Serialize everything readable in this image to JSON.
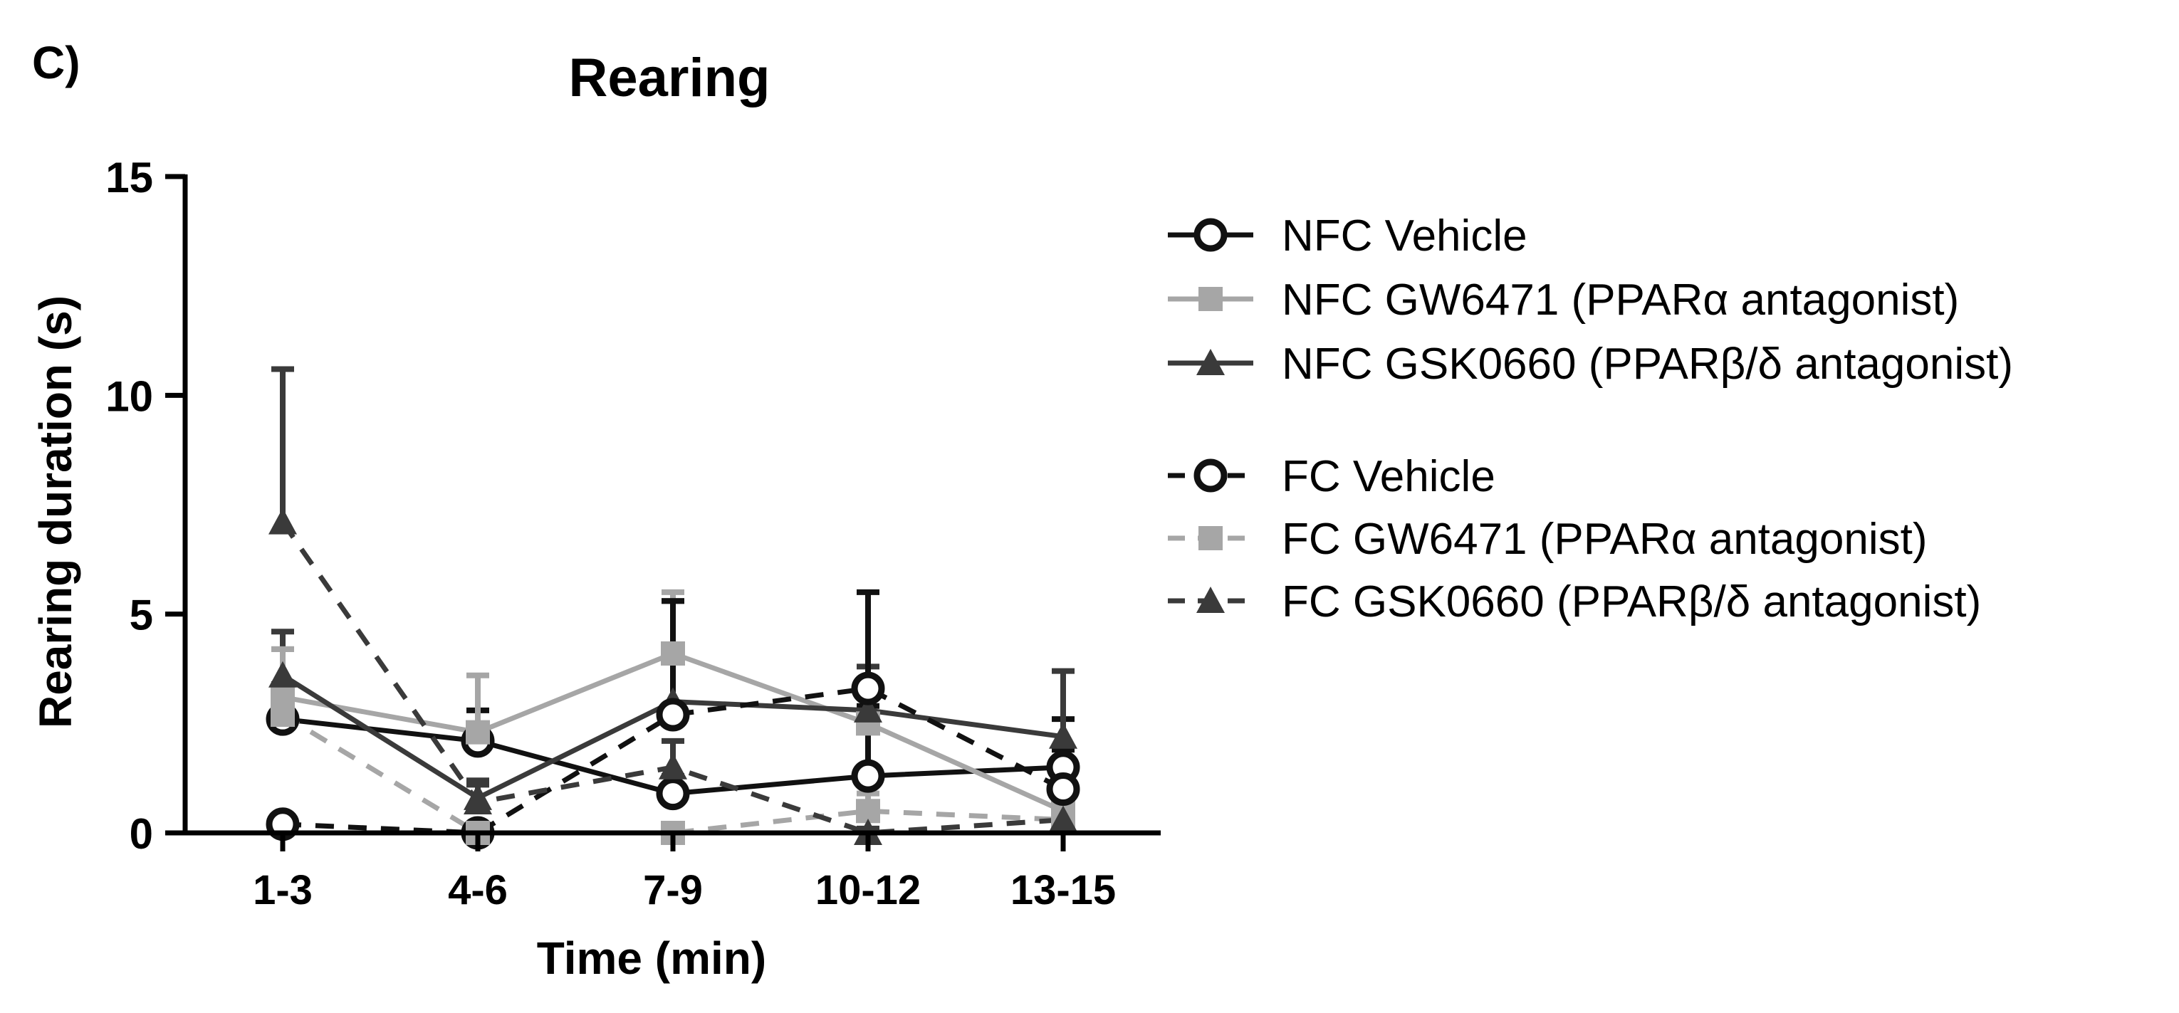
{
  "panel_label": "C)",
  "chart_data": {
    "type": "line",
    "title": "Rearing",
    "xlabel": "Time (min)",
    "ylabel": "Rearing duration (s)",
    "categories": [
      "1-3",
      "4-6",
      "7-9",
      "10-12",
      "13-15"
    ],
    "ylim": [
      0,
      15
    ],
    "yticks": [
      0,
      5,
      10,
      15
    ],
    "grid": false,
    "legend_position": "right",
    "series": [
      {
        "name": "NFC Vehicle",
        "color": "#111111",
        "dash": "solid",
        "marker": "open-circle",
        "values": [
          2.6,
          2.1,
          0.9,
          1.3,
          1.5
        ],
        "errors": [
          0.8,
          0.7,
          0.4,
          1.6,
          1.1
        ]
      },
      {
        "name": "NFC GW6471 (PPARα antagonist)",
        "color": "#a6a6a6",
        "dash": "solid",
        "marker": "square",
        "values": [
          3.1,
          2.3,
          4.1,
          2.5,
          0.5
        ],
        "errors": [
          1.1,
          1.3,
          1.4,
          1.0,
          0.3
        ]
      },
      {
        "name": "NFC GSK0660 (PPARβ/δ antagonist)",
        "color": "#3a3a3a",
        "dash": "solid",
        "marker": "triangle",
        "values": [
          3.6,
          0.8,
          3.0,
          2.8,
          2.2
        ],
        "errors": [
          1.0,
          0.4,
          2.3,
          1.0,
          1.5
        ]
      },
      {
        "name": "FC Vehicle",
        "color": "#111111",
        "dash": "dashed",
        "marker": "open-circle",
        "values": [
          0.2,
          0.0,
          2.7,
          3.3,
          1.0
        ],
        "errors": [
          0.1,
          0.1,
          2.6,
          2.2,
          0.9
        ]
      },
      {
        "name": "FC GW6471 (PPARα antagonist)",
        "color": "#a6a6a6",
        "dash": "dashed",
        "marker": "square",
        "values": [
          2.7,
          0.0,
          0.0,
          0.5,
          0.3
        ],
        "errors": [
          1.5,
          0.1,
          0.1,
          0.4,
          0.2
        ]
      },
      {
        "name": "FC GSK0660 (PPARβ/δ antagonist)",
        "color": "#3a3a3a",
        "dash": "dashed",
        "marker": "triangle",
        "values": [
          7.1,
          0.7,
          1.5,
          0.0,
          0.3
        ],
        "errors": [
          3.5,
          0.4,
          0.6,
          0.1,
          0.2
        ]
      }
    ]
  }
}
